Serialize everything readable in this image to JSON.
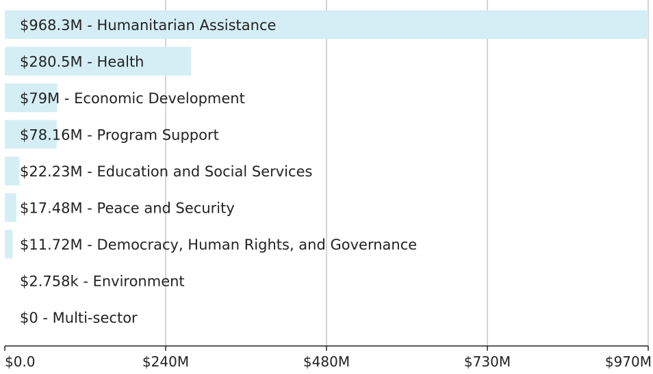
{
  "chart_data": {
    "type": "bar",
    "orientation": "horizontal",
    "title": "",
    "xlabel": "",
    "ylabel": "",
    "xlim": [
      0,
      968.3
    ],
    "x_ticks": [
      "$0.0",
      "$240M",
      "$480M",
      "$730M",
      "$970M"
    ],
    "x_tick_values": [
      0,
      242.075,
      484.15,
      726.225,
      968.3
    ],
    "grid": true,
    "categories": [
      "Humanitarian Assistance",
      "Health",
      "Economic Development",
      "Program Support",
      "Education and Social Services",
      "Peace and Security",
      "Democracy, Human Rights, and Governance",
      "Environment",
      "Multi-sector"
    ],
    "values": [
      968.3,
      280.5,
      79,
      78.16,
      22.23,
      17.48,
      11.72,
      0.002758,
      0
    ],
    "labels": [
      "$968.3M - Humanitarian Assistance",
      "$280.5M - Health",
      "$79M - Economic Development",
      "$78.16M - Program Support",
      "$22.23M - Education and Social Services",
      "$17.48M - Peace and Security",
      "$11.72M - Democracy, Human Rights, and Governance",
      "$2.758k - Environment",
      "$0 - Multi-sector"
    ],
    "colors": {
      "bar": "#d5eef5",
      "grid": "#d4d4d4",
      "axis": "#222222",
      "text": "#222222"
    }
  }
}
